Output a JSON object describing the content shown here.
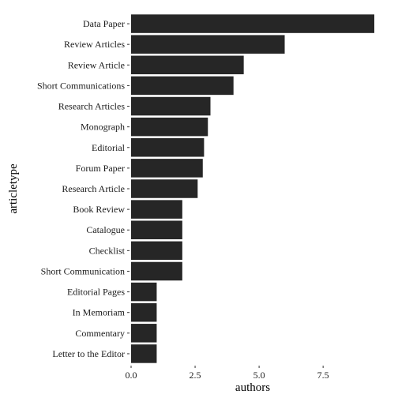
{
  "colors": {
    "background": "#ffffff",
    "bar": "#262626",
    "tick": "#333333",
    "text": "#1a1a1a"
  },
  "chart_data": {
    "type": "bar",
    "orientation": "horizontal",
    "categories": [
      "Data Paper",
      "Review Articles",
      "Review Article",
      "Short Communications",
      "Research Articles",
      "Monograph",
      "Editorial",
      "Forum Paper",
      "Research Article",
      "Book Review",
      "Catalogue",
      "Checklist",
      "Short Communication",
      "Editorial Pages",
      "In Memoriam",
      "Commentary",
      "Letter to the Editor"
    ],
    "values": [
      9.5,
      6.0,
      4.4,
      4.0,
      3.1,
      3.0,
      2.85,
      2.8,
      2.6,
      2.0,
      2.0,
      2.0,
      2.0,
      1.0,
      1.0,
      1.0,
      1.0
    ],
    "xlabel": "authors",
    "ylabel": "articletype",
    "xlim": [
      0,
      9.5
    ],
    "xticks": [
      0,
      2.5,
      5,
      7.5
    ],
    "xtick_labels": [
      "0.0",
      "2.5",
      "5.0",
      "7.5"
    ],
    "grid": false,
    "legend": "none"
  }
}
